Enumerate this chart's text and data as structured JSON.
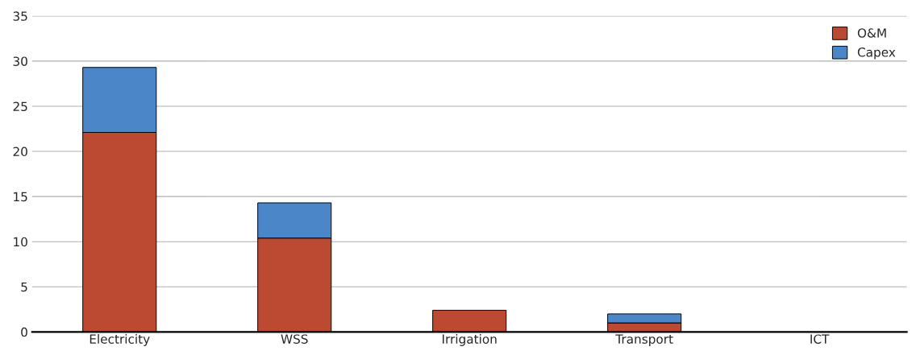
{
  "chart_data": {
    "type": "bar",
    "stacked": true,
    "categories": [
      "Electricity",
      "WSS",
      "Irrigation",
      "Transport",
      "ICT"
    ],
    "series": [
      {
        "name": "O&M",
        "color": "#bc4a32",
        "values": [
          22.1,
          10.4,
          2.4,
          1.0,
          0
        ]
      },
      {
        "name": "Capex",
        "color": "#4a86c8",
        "values": [
          7.2,
          3.9,
          0,
          1.0,
          0
        ]
      }
    ],
    "ylim": [
      0,
      35
    ],
    "yticks": [
      0,
      5,
      10,
      15,
      20,
      25,
      30,
      35
    ],
    "grid": "y",
    "legend": "top right"
  }
}
